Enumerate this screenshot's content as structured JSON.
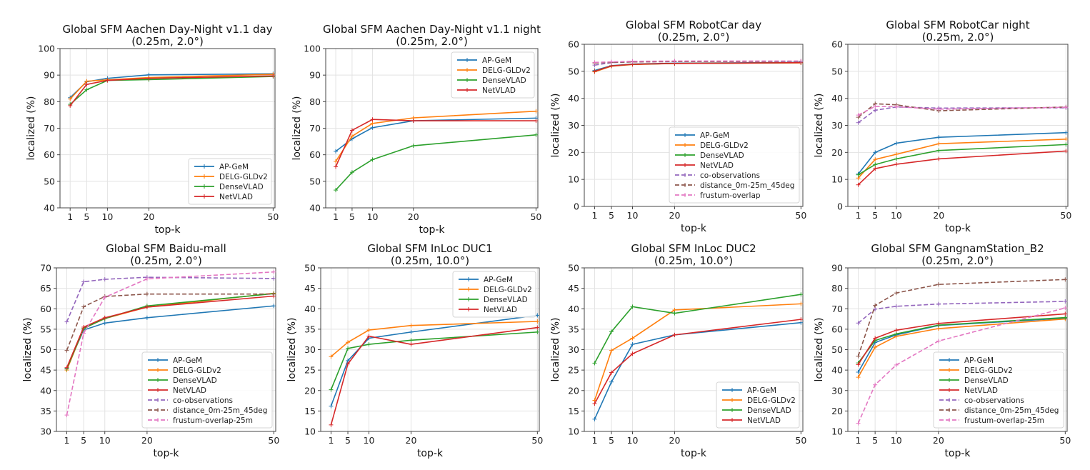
{
  "figure": {
    "name": "Global SFM localization results grid"
  },
  "series_styles": {
    "AP-GeM": {
      "color": "#1f77b4",
      "dash": false
    },
    "DELG-GLDv2": {
      "color": "#ff7f0e",
      "dash": false
    },
    "DenseVLAD": {
      "color": "#2ca02c",
      "dash": false
    },
    "NetVLAD": {
      "color": "#d62728",
      "dash": false
    },
    "co-observations": {
      "color": "#9467bd",
      "dash": true
    },
    "distance_0m-25m_45deg": {
      "color": "#8c564b",
      "dash": true
    },
    "frustum-overlap": {
      "color": "#e377c2",
      "dash": true
    },
    "frustum-overlap-25m": {
      "color": "#e377c2",
      "dash": true
    }
  },
  "chart_data": [
    {
      "type": "line",
      "title": "Global SFM Aachen Day-Night v1.1 day",
      "subtitle": "(0.25m, 2.0°)",
      "xlabel": "top-k",
      "ylabel": "localized (%)",
      "x": [
        1,
        5,
        10,
        20,
        50
      ],
      "xticks": [
        1,
        5,
        10,
        20,
        50
      ],
      "ylim": [
        40,
        100
      ],
      "yticks": [
        40,
        50,
        60,
        70,
        80,
        90,
        100
      ],
      "grid": true,
      "legend": "lower-right",
      "series": [
        {
          "name": "AP-GeM",
          "values": [
            81.5,
            87.5,
            88.8,
            90.1,
            90.5
          ]
        },
        {
          "name": "DELG-GLDv2",
          "values": [
            81.0,
            87.7,
            88.2,
            89.1,
            90.3
          ]
        },
        {
          "name": "DenseVLAD",
          "values": [
            79.0,
            84.5,
            88.0,
            88.3,
            89.5
          ]
        },
        {
          "name": "NetVLAD",
          "values": [
            78.5,
            86.5,
            88.0,
            88.8,
            89.7
          ]
        }
      ]
    },
    {
      "type": "line",
      "title": "Global SFM Aachen Day-Night v1.1 night",
      "subtitle": "(0.25m, 2.0°)",
      "xlabel": "top-k",
      "ylabel": "localized (%)",
      "x": [
        1,
        5,
        10,
        20,
        50
      ],
      "xticks": [
        1,
        5,
        10,
        20,
        50
      ],
      "ylim": [
        40,
        100
      ],
      "yticks": [
        40,
        50,
        60,
        70,
        80,
        90,
        100
      ],
      "grid": true,
      "legend": "upper-right",
      "series": [
        {
          "name": "AP-GeM",
          "values": [
            61.3,
            66.0,
            70.2,
            72.8,
            73.8
          ]
        },
        {
          "name": "DELG-GLDv2",
          "values": [
            57.5,
            67.0,
            71.8,
            73.9,
            76.4
          ]
        },
        {
          "name": "DenseVLAD",
          "values": [
            46.7,
            53.4,
            58.2,
            63.4,
            67.5
          ]
        },
        {
          "name": "NetVLAD",
          "values": [
            55.5,
            69.2,
            73.3,
            72.8,
            72.8
          ]
        }
      ]
    },
    {
      "type": "line",
      "title": "Global SFM RobotCar day",
      "subtitle": "(0.25m, 2.0°)",
      "xlabel": "top-k",
      "ylabel": "localized (%)",
      "x": [
        1,
        5,
        10,
        20,
        50
      ],
      "xticks": [
        1,
        5,
        10,
        20,
        50
      ],
      "ylim": [
        0,
        60
      ],
      "yticks": [
        0,
        10,
        20,
        30,
        40,
        50,
        60
      ],
      "grid": true,
      "legend": "lower-right",
      "series": [
        {
          "name": "AP-GeM",
          "values": [
            50.3,
            52.1,
            52.7,
            53.0,
            53.3
          ]
        },
        {
          "name": "DELG-GLDv2",
          "values": [
            49.8,
            51.9,
            52.5,
            52.9,
            53.1
          ]
        },
        {
          "name": "DenseVLAD",
          "values": [
            50.0,
            52.0,
            52.6,
            52.9,
            53.2
          ]
        },
        {
          "name": "NetVLAD",
          "values": [
            50.0,
            52.0,
            52.6,
            52.9,
            53.2
          ]
        },
        {
          "name": "co-observations",
          "values": [
            52.3,
            53.2,
            53.5,
            53.6,
            53.7
          ]
        },
        {
          "name": "distance_0m-25m_45deg",
          "values": [
            53.1,
            53.3,
            53.5,
            53.6,
            53.7
          ]
        },
        {
          "name": "frustum-overlap",
          "values": [
            53.3,
            53.5,
            53.7,
            53.8,
            53.8
          ]
        }
      ]
    },
    {
      "type": "line",
      "title": "Global SFM RobotCar night",
      "subtitle": "(0.25m, 2.0°)",
      "xlabel": "top-k",
      "ylabel": "localized (%)",
      "x": [
        1,
        5,
        10,
        20,
        50
      ],
      "xticks": [
        1,
        5,
        10,
        20,
        50
      ],
      "ylim": [
        0,
        60
      ],
      "yticks": [
        0,
        10,
        20,
        30,
        40,
        50,
        60
      ],
      "grid": true,
      "legend": "none",
      "series": [
        {
          "name": "AP-GeM",
          "values": [
            12.0,
            20.0,
            23.4,
            25.6,
            27.3
          ]
        },
        {
          "name": "DELG-GLDv2",
          "values": [
            10.5,
            17.4,
            19.3,
            23.2,
            24.9
          ]
        },
        {
          "name": "DenseVLAD",
          "values": [
            11.7,
            15.5,
            17.6,
            20.7,
            22.9
          ]
        },
        {
          "name": "NetVLAD",
          "values": [
            8.0,
            14.0,
            15.6,
            17.6,
            20.5
          ]
        },
        {
          "name": "co-observations",
          "values": [
            31.0,
            35.6,
            36.8,
            36.4,
            36.5
          ]
        },
        {
          "name": "distance_0m-25m_45deg",
          "values": [
            33.0,
            38.0,
            37.6,
            35.4,
            36.8
          ]
        },
        {
          "name": "frustum-overlap",
          "values": [
            33.8,
            37.0,
            36.9,
            36.0,
            36.7
          ]
        }
      ]
    },
    {
      "type": "line",
      "title": "Global SFM Baidu-mall",
      "subtitle": "(0.25m, 2.0°)",
      "xlabel": "top-k",
      "ylabel": "localized (%)",
      "x": [
        1,
        5,
        10,
        20,
        50
      ],
      "xticks": [
        1,
        5,
        10,
        20,
        50
      ],
      "ylim": [
        30,
        70
      ],
      "yticks": [
        30,
        35,
        40,
        45,
        50,
        55,
        60,
        65,
        70
      ],
      "grid": true,
      "legend": "lower-right",
      "series": [
        {
          "name": "AP-GeM",
          "values": [
            45.5,
            54.8,
            56.5,
            57.8,
            60.7
          ]
        },
        {
          "name": "DELG-GLDv2",
          "values": [
            45.0,
            55.2,
            57.6,
            60.4,
            63.8
          ]
        },
        {
          "name": "DenseVLAD",
          "values": [
            45.3,
            55.2,
            57.6,
            60.7,
            63.7
          ]
        },
        {
          "name": "NetVLAD",
          "values": [
            45.6,
            55.5,
            57.8,
            60.4,
            63.1
          ]
        },
        {
          "name": "co-observations",
          "values": [
            56.8,
            66.6,
            67.2,
            67.7,
            67.4
          ]
        },
        {
          "name": "distance_0m-25m_45deg",
          "values": [
            49.8,
            60.5,
            63.0,
            63.6,
            63.6
          ]
        },
        {
          "name": "frustum-overlap-25m",
          "values": [
            34.0,
            54.0,
            62.8,
            67.3,
            69.0
          ]
        }
      ]
    },
    {
      "type": "line",
      "title": "Global SFM InLoc DUC1",
      "subtitle": "(0.25m, 10.0°)",
      "xlabel": "top-k",
      "ylabel": "localized (%)",
      "x": [
        1,
        5,
        10,
        20,
        50
      ],
      "xticks": [
        1,
        5,
        10,
        20,
        50
      ],
      "ylim": [
        10,
        50
      ],
      "yticks": [
        10,
        15,
        20,
        25,
        30,
        35,
        40,
        45,
        50
      ],
      "grid": true,
      "legend": "upper-right",
      "series": [
        {
          "name": "AP-GeM",
          "values": [
            16.2,
            27.3,
            32.8,
            34.3,
            38.4
          ]
        },
        {
          "name": "DELG-GLDv2",
          "values": [
            28.3,
            31.8,
            34.8,
            35.9,
            36.9
          ]
        },
        {
          "name": "DenseVLAD",
          "values": [
            20.2,
            30.3,
            31.3,
            32.3,
            34.3
          ]
        },
        {
          "name": "NetVLAD",
          "values": [
            11.6,
            26.5,
            33.3,
            31.3,
            35.4
          ]
        }
      ]
    },
    {
      "type": "line",
      "title": "Global SFM InLoc DUC2",
      "subtitle": "(0.25m, 10.0°)",
      "xlabel": "top-k",
      "ylabel": "localized (%)",
      "x": [
        1,
        5,
        10,
        20,
        50
      ],
      "xticks": [
        1,
        5,
        10,
        20,
        50
      ],
      "ylim": [
        10,
        50
      ],
      "yticks": [
        10,
        15,
        20,
        25,
        30,
        35,
        40,
        45,
        50
      ],
      "grid": true,
      "legend": "lower-right",
      "series": [
        {
          "name": "AP-GeM",
          "values": [
            13.0,
            22.1,
            31.3,
            33.6,
            36.6
          ]
        },
        {
          "name": "DELG-GLDv2",
          "values": [
            17.6,
            29.8,
            32.8,
            39.7,
            41.2
          ]
        },
        {
          "name": "DenseVLAD",
          "values": [
            26.7,
            34.4,
            40.5,
            38.9,
            43.5
          ]
        },
        {
          "name": "NetVLAD",
          "values": [
            16.8,
            24.4,
            29.0,
            33.6,
            37.4
          ]
        }
      ]
    },
    {
      "type": "line",
      "title": "Global SFM GangnamStation_B2",
      "subtitle": "(0.25m, 2.0°)",
      "xlabel": "top-k",
      "ylabel": "localized (%)",
      "x": [
        1,
        5,
        10,
        20,
        50
      ],
      "xticks": [
        1,
        5,
        10,
        20,
        50
      ],
      "ylim": [
        10,
        90
      ],
      "yticks": [
        10,
        20,
        30,
        40,
        50,
        60,
        70,
        80,
        90
      ],
      "grid": true,
      "legend": "lower-right",
      "series": [
        {
          "name": "AP-GeM",
          "values": [
            39.0,
            53.5,
            57.2,
            61.8,
            65.4
          ]
        },
        {
          "name": "DELG-GLDv2",
          "values": [
            36.5,
            51.2,
            56.5,
            60.3,
            65.0
          ]
        },
        {
          "name": "DenseVLAD",
          "values": [
            43.5,
            54.5,
            57.7,
            62.0,
            65.7
          ]
        },
        {
          "name": "NetVLAD",
          "values": [
            42.7,
            55.6,
            59.5,
            62.8,
            67.5
          ]
        },
        {
          "name": "co-observations",
          "values": [
            63.0,
            69.8,
            71.2,
            72.3,
            73.6
          ]
        },
        {
          "name": "distance_0m-25m_45deg",
          "values": [
            46.8,
            71.6,
            77.7,
            81.9,
            84.3
          ]
        },
        {
          "name": "frustum-overlap-25m",
          "values": [
            14.0,
            32.8,
            42.5,
            54.2,
            70.4
          ]
        }
      ]
    }
  ]
}
